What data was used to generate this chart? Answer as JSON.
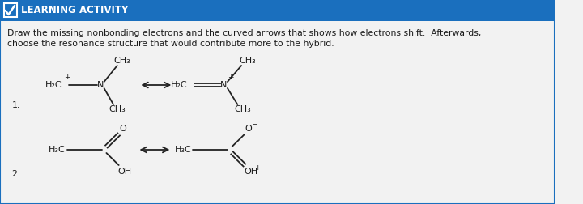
{
  "header_bg": "#1a6fbe",
  "header_text": "LEARNING ACTIVITY",
  "body_bg": "#f2f2f2",
  "border_color": "#1a6fbe",
  "instruction_line1": "Draw the missing nonbonding electrons and the curved arrows that shows how electrons shift.  Afterwards,",
  "instruction_line2": "choose the resonance structure that would contribute more to the hybrid.",
  "text_color": "#1a1a1a",
  "font_size_header": 8.5,
  "font_size_body": 7.8,
  "font_size_chem": 8.0,
  "font_size_sub": 6.5
}
